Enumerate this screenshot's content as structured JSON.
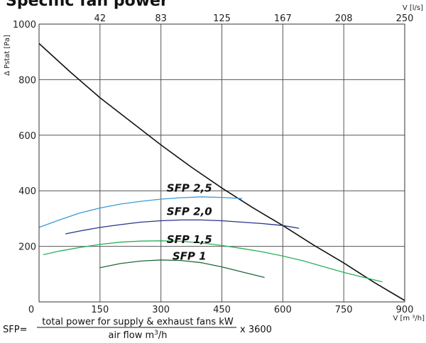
{
  "chart_data": {
    "type": "line",
    "title": "Specific fan power",
    "xlabel": "V [m ³/h]",
    "ylabel": "Δ Pstat [Pa]",
    "x2label": "V [l/s]",
    "xlim": [
      0,
      900
    ],
    "ylim": [
      0,
      1000
    ],
    "x_ticks": [
      0,
      150,
      300,
      450,
      600,
      750,
      900
    ],
    "y_ticks": [
      200,
      400,
      600,
      800,
      1000
    ],
    "x2_ticks": [
      {
        "label": "42",
        "at": 150
      },
      {
        "label": "83",
        "at": 300
      },
      {
        "label": "125",
        "at": 450
      },
      {
        "label": "167",
        "at": 600
      },
      {
        "label": "208",
        "at": 750
      },
      {
        "label": "250",
        "at": 900
      }
    ],
    "grid": true,
    "series": [
      {
        "kind": "fan-curve",
        "color": "#111111",
        "points": [
          [
            0,
            930
          ],
          [
            75,
            830
          ],
          [
            150,
            735
          ],
          [
            225,
            650
          ],
          [
            300,
            565
          ],
          [
            375,
            485
          ],
          [
            450,
            410
          ],
          [
            525,
            340
          ],
          [
            600,
            275
          ],
          [
            675,
            205
          ],
          [
            750,
            140
          ],
          [
            825,
            70
          ],
          [
            900,
            5
          ]
        ]
      },
      {
        "name": "SFP 2,5",
        "color": "#3a9ad9",
        "points": [
          [
            0,
            268
          ],
          [
            50,
            295
          ],
          [
            100,
            320
          ],
          [
            150,
            338
          ],
          [
            200,
            352
          ],
          [
            250,
            362
          ],
          [
            300,
            370
          ],
          [
            350,
            375
          ],
          [
            400,
            378
          ],
          [
            450,
            376
          ],
          [
            500,
            372
          ]
        ],
        "label_at": [
          370,
          410
        ]
      },
      {
        "name": "SFP 2,0",
        "color": "#26348c",
        "points": [
          [
            65,
            245
          ],
          [
            100,
            255
          ],
          [
            150,
            268
          ],
          [
            200,
            278
          ],
          [
            250,
            287
          ],
          [
            300,
            292
          ],
          [
            350,
            295
          ],
          [
            400,
            295
          ],
          [
            450,
            292
          ],
          [
            500,
            287
          ],
          [
            550,
            282
          ],
          [
            600,
            275
          ],
          [
            640,
            265
          ]
        ],
        "label_at": [
          370,
          325
        ]
      },
      {
        "name": "SFP 1,5",
        "color": "#2ab05a",
        "points": [
          [
            10,
            170
          ],
          [
            50,
            183
          ],
          [
            100,
            196
          ],
          [
            150,
            207
          ],
          [
            200,
            215
          ],
          [
            250,
            219
          ],
          [
            300,
            220
          ],
          [
            350,
            218
          ],
          [
            400,
            212
          ],
          [
            450,
            203
          ],
          [
            500,
            192
          ],
          [
            550,
            180
          ],
          [
            600,
            165
          ],
          [
            650,
            148
          ],
          [
            700,
            127
          ],
          [
            750,
            106
          ],
          [
            800,
            88
          ],
          [
            845,
            72
          ]
        ],
        "label_at": [
          370,
          225
        ]
      },
      {
        "name": "SFP 1",
        "color": "#1e6a3a",
        "points": [
          [
            150,
            123
          ],
          [
            200,
            138
          ],
          [
            250,
            147
          ],
          [
            300,
            151
          ],
          [
            350,
            149
          ],
          [
            400,
            141
          ],
          [
            450,
            126
          ],
          [
            500,
            108
          ],
          [
            555,
            88
          ]
        ],
        "label_at": [
          370,
          165
        ]
      }
    ]
  },
  "formula": {
    "prefix": "SFP=",
    "numerator": "total power for supply & exhaust fans kW",
    "denominator_base": "air flow m",
    "denominator_sup": "3",
    "denominator_tail": "/h",
    "suffix": "x 3600"
  }
}
